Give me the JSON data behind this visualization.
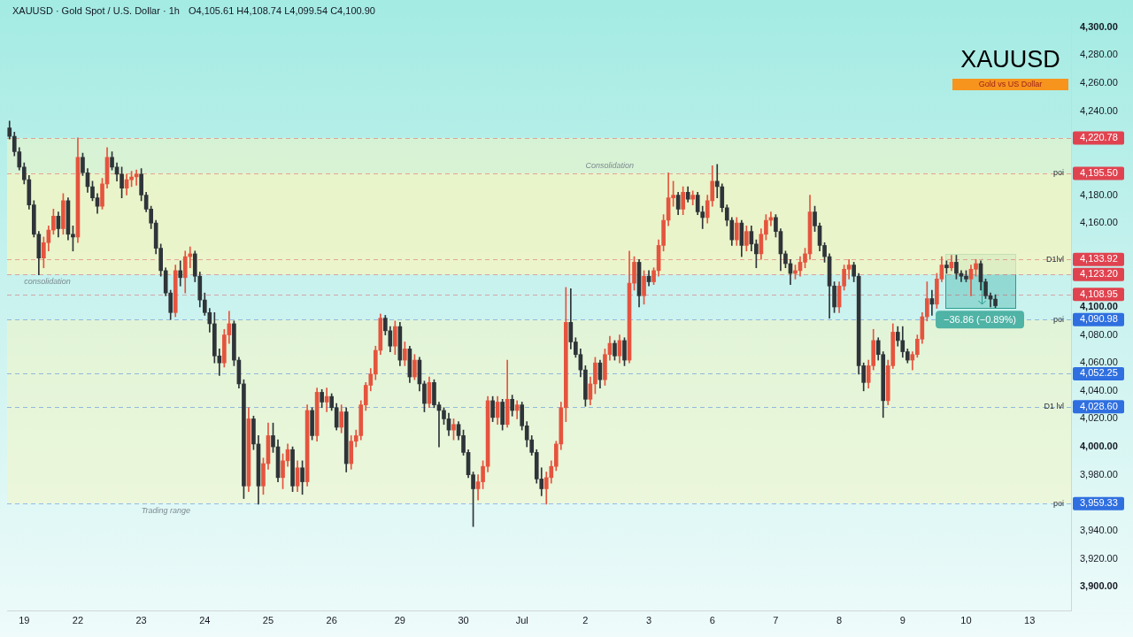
{
  "chart_data": {
    "type": "candlestick",
    "title": "XAUUSD · Gold Spot / U.S. Dollar · 1h",
    "subtitle": "O4,105.61 H4,108.74 L4,099.54 C4,100.90",
    "categories": [
      null,
      null,
      null,
      "19",
      null,
      null,
      null,
      null,
      null,
      null,
      null,
      null,
      null,
      null,
      "22",
      null,
      null,
      null,
      null,
      null,
      null,
      null,
      null,
      null,
      null,
      null,
      null,
      "23",
      null,
      null,
      null,
      null,
      null,
      null,
      null,
      null,
      null,
      null,
      null,
      null,
      "24",
      null,
      null,
      null,
      null,
      null,
      null,
      null,
      null,
      null,
      null,
      null,
      null,
      "25",
      null,
      null,
      null,
      null,
      null,
      null,
      null,
      null,
      null,
      null,
      null,
      null,
      "26",
      null,
      null,
      null,
      null,
      null,
      null,
      null,
      null,
      null,
      null,
      null,
      null,
      null,
      "29",
      null,
      null,
      null,
      null,
      null,
      null,
      null,
      null,
      null,
      null,
      null,
      null,
      "30",
      null,
      null,
      null,
      null,
      null,
      null,
      null,
      null,
      null,
      null,
      null,
      "Jul",
      null,
      null,
      null,
      null,
      null,
      null,
      null,
      null,
      null,
      null,
      null,
      null,
      "2",
      null,
      null,
      null,
      null,
      null,
      null,
      null,
      null,
      null,
      null,
      null,
      null,
      "3",
      null,
      null,
      null,
      null,
      null,
      null,
      null,
      null,
      null,
      null,
      null,
      null,
      "6",
      null,
      null,
      null,
      null,
      null,
      null,
      null,
      null,
      null,
      null,
      null,
      null,
      "7",
      null,
      null,
      null,
      null,
      null,
      null,
      null,
      null,
      null,
      null,
      null,
      null,
      "8",
      null,
      null,
      null,
      null,
      null,
      null,
      null,
      null,
      null,
      null,
      null,
      null,
      "9",
      null,
      null,
      null,
      null,
      null,
      null,
      null,
      null,
      null,
      null,
      null,
      null,
      "10",
      null,
      null,
      null,
      null,
      null,
      null,
      null,
      null,
      null,
      null,
      null,
      null,
      "13",
      null,
      null,
      null,
      null,
      null,
      null,
      null,
      null
    ],
    "ohlc": [
      [
        4228,
        4233,
        4220,
        4222
      ],
      [
        4222,
        4225,
        4208,
        4211
      ],
      [
        4211,
        4214,
        4198,
        4200
      ],
      [
        4200,
        4203,
        4188,
        4191
      ],
      [
        4191,
        4194,
        4170,
        4173
      ],
      [
        4173,
        4176,
        4150,
        4152
      ],
      [
        4152,
        4154,
        4123,
        4135
      ],
      [
        4135,
        4150,
        4128,
        4146
      ],
      [
        4146,
        4158,
        4140,
        4155
      ],
      [
        4155,
        4170,
        4152,
        4165
      ],
      [
        4165,
        4168,
        4150,
        4156
      ],
      [
        4156,
        4181,
        4152,
        4176
      ],
      [
        4176,
        4178,
        4148,
        4152
      ],
      [
        4152,
        4158,
        4140,
        4150
      ],
      [
        4150,
        4221,
        4146,
        4207
      ],
      [
        4207,
        4210,
        4194,
        4196
      ],
      [
        4196,
        4199,
        4182,
        4186
      ],
      [
        4186,
        4190,
        4176,
        4178
      ],
      [
        4178,
        4181,
        4167,
        4172
      ],
      [
        4172,
        4192,
        4170,
        4188
      ],
      [
        4188,
        4214,
        4185,
        4207
      ],
      [
        4207,
        4211,
        4198,
        4200
      ],
      [
        4200,
        4203,
        4190,
        4195
      ],
      [
        4195,
        4200,
        4178,
        4185
      ],
      [
        4185,
        4195,
        4180,
        4191
      ],
      [
        4191,
        4197,
        4186,
        4193
      ],
      [
        4193,
        4198,
        4187,
        4195
      ],
      [
        4195,
        4199,
        4176,
        4180
      ],
      [
        4180,
        4182,
        4168,
        4170
      ],
      [
        4170,
        4172,
        4156,
        4160
      ],
      [
        4160,
        4162,
        4138,
        4142
      ],
      [
        4142,
        4145,
        4122,
        4126
      ],
      [
        4126,
        4128,
        4108,
        4110
      ],
      [
        4110,
        4112,
        4091,
        4096
      ],
      [
        4096,
        4130,
        4093,
        4126
      ],
      [
        4126,
        4133,
        4115,
        4121
      ],
      [
        4121,
        4140,
        4110,
        4136
      ],
      [
        4136,
        4143,
        4128,
        4138
      ],
      [
        4138,
        4140,
        4118,
        4122
      ],
      [
        4122,
        4125,
        4100,
        4105
      ],
      [
        4105,
        4110,
        4094,
        4096
      ],
      [
        4096,
        4099,
        4082,
        4088
      ],
      [
        4088,
        4096,
        4060,
        4065
      ],
      [
        4065,
        4070,
        4051,
        4060
      ],
      [
        4060,
        4084,
        4057,
        4080
      ],
      [
        4080,
        4097,
        4074,
        4088
      ],
      [
        4088,
        4090,
        4058,
        4062
      ],
      [
        4062,
        4064,
        4042,
        4045
      ],
      [
        4045,
        4048,
        3963,
        3972
      ],
      [
        3972,
        4028,
        3968,
        4020
      ],
      [
        4020,
        4022,
        3998,
        4002
      ],
      [
        4002,
        4008,
        3959,
        3972
      ],
      [
        3972,
        3992,
        3966,
        3988
      ],
      [
        3988,
        4017,
        3984,
        4008
      ],
      [
        4008,
        4017,
        3996,
        4000
      ],
      [
        4000,
        4005,
        3975,
        3978
      ],
      [
        3978,
        3995,
        3970,
        3990
      ],
      [
        3990,
        4002,
        3986,
        3998
      ],
      [
        3998,
        4000,
        3968,
        3972
      ],
      [
        3972,
        3990,
        3968,
        3985
      ],
      [
        3985,
        3990,
        3966,
        3975
      ],
      [
        3975,
        4030,
        3972,
        4026
      ],
      [
        4026,
        4028,
        4005,
        4008
      ],
      [
        4008,
        4042,
        4004,
        4039
      ],
      [
        4039,
        4041,
        4028,
        4032
      ],
      [
        4032,
        4042,
        4025,
        4036
      ],
      [
        4036,
        4038,
        4026,
        4028
      ],
      [
        4028,
        4031,
        4012,
        4014
      ],
      [
        4014,
        4030,
        4010,
        4025
      ],
      [
        4025,
        4028,
        3982,
        3988
      ],
      [
        3988,
        4008,
        3984,
        4004
      ],
      [
        4004,
        4012,
        4000,
        4008
      ],
      [
        4008,
        4033,
        4005,
        4030
      ],
      [
        4030,
        4046,
        4026,
        4044
      ],
      [
        4044,
        4056,
        4040,
        4052
      ],
      [
        4052,
        4072,
        4048,
        4069
      ],
      [
        4069,
        4095,
        4066,
        4092
      ],
      [
        4092,
        4094,
        4080,
        4083
      ],
      [
        4083,
        4086,
        4068,
        4072
      ],
      [
        4072,
        4090,
        4066,
        4086
      ],
      [
        4086,
        4089,
        4058,
        4062
      ],
      [
        4062,
        4075,
        4058,
        4070
      ],
      [
        4070,
        4072,
        4046,
        4050
      ],
      [
        4050,
        4066,
        4048,
        4062
      ],
      [
        4062,
        4064,
        4040,
        4045
      ],
      [
        4045,
        4047,
        4025,
        4031
      ],
      [
        4031,
        4050,
        4028,
        4046
      ],
      [
        4046,
        4048,
        4028,
        4030
      ],
      [
        4030,
        4032,
        4000,
        4026
      ],
      [
        4026,
        4028,
        4016,
        4020
      ],
      [
        4020,
        4024,
        4008,
        4012
      ],
      [
        4012,
        4020,
        4005,
        4016
      ],
      [
        4016,
        4018,
        4005,
        4008
      ],
      [
        4008,
        4012,
        3994,
        3996
      ],
      [
        3996,
        3998,
        3978,
        3980
      ],
      [
        3980,
        3982,
        3943,
        3970
      ],
      [
        3970,
        3980,
        3962,
        3975
      ],
      [
        3975,
        3990,
        3970,
        3986
      ],
      [
        3986,
        4036,
        3982,
        4033
      ],
      [
        4033,
        4036,
        4018,
        4021
      ],
      [
        4021,
        4036,
        4016,
        4032
      ],
      [
        4032,
        4034,
        4012,
        4016
      ],
      [
        4016,
        4062,
        4014,
        4034
      ],
      [
        4034,
        4037,
        4022,
        4026
      ],
      [
        4026,
        4033,
        4020,
        4030
      ],
      [
        4030,
        4032,
        4012,
        4015
      ],
      [
        4015,
        4018,
        4000,
        4005
      ],
      [
        4005,
        4008,
        3994,
        3996
      ],
      [
        3996,
        3998,
        3974,
        3977
      ],
      [
        3977,
        3985,
        3965,
        3970
      ],
      [
        3970,
        3982,
        3959,
        3978
      ],
      [
        3978,
        3990,
        3974,
        3986
      ],
      [
        3986,
        4004,
        3983,
        4002
      ],
      [
        4002,
        4032,
        3998,
        4028
      ],
      [
        4028,
        4114,
        4018,
        4089
      ],
      [
        4089,
        4113,
        4070,
        4075
      ],
      [
        4075,
        4078,
        4064,
        4066
      ],
      [
        4066,
        4070,
        4050,
        4055
      ],
      [
        4055,
        4058,
        4029,
        4034
      ],
      [
        4034,
        4050,
        4030,
        4045
      ],
      [
        4045,
        4064,
        4038,
        4060
      ],
      [
        4060,
        4062,
        4042,
        4048
      ],
      [
        4048,
        4070,
        4044,
        4066
      ],
      [
        4066,
        4079,
        4062,
        4074
      ],
      [
        4074,
        4076,
        4062,
        4065
      ],
      [
        4065,
        4080,
        4060,
        4076
      ],
      [
        4076,
        4078,
        4058,
        4062
      ],
      [
        4062,
        4140,
        4060,
        4117
      ],
      [
        4117,
        4136,
        4112,
        4132
      ],
      [
        4132,
        4134,
        4100,
        4108
      ],
      [
        4108,
        4126,
        4102,
        4122
      ],
      [
        4122,
        4126,
        4115,
        4118
      ],
      [
        4118,
        4128,
        4116,
        4126
      ],
      [
        4126,
        4148,
        4122,
        4144
      ],
      [
        4144,
        4166,
        4140,
        4162
      ],
      [
        4162,
        4196,
        4158,
        4178
      ],
      [
        4178,
        4190,
        4172,
        4180
      ],
      [
        4180,
        4182,
        4166,
        4170
      ],
      [
        4170,
        4186,
        4166,
        4182
      ],
      [
        4182,
        4186,
        4175,
        4177
      ],
      [
        4177,
        4183,
        4173,
        4180
      ],
      [
        4180,
        4182,
        4166,
        4168
      ],
      [
        4168,
        4172,
        4156,
        4164
      ],
      [
        4164,
        4180,
        4160,
        4176
      ],
      [
        4176,
        4201,
        4172,
        4190
      ],
      [
        4190,
        4202,
        4178,
        4186
      ],
      [
        4186,
        4188,
        4168,
        4171
      ],
      [
        4171,
        4173,
        4158,
        4162
      ],
      [
        4162,
        4164,
        4144,
        4148
      ],
      [
        4148,
        4164,
        4144,
        4160
      ],
      [
        4160,
        4162,
        4136,
        4144
      ],
      [
        4144,
        4158,
        4140,
        4154
      ],
      [
        4154,
        4158,
        4140,
        4145
      ],
      [
        4145,
        4148,
        4128,
        4138
      ],
      [
        4138,
        4156,
        4134,
        4152
      ],
      [
        4152,
        4166,
        4148,
        4162
      ],
      [
        4162,
        4168,
        4158,
        4164
      ],
      [
        4164,
        4166,
        4150,
        4154
      ],
      [
        4154,
        4156,
        4126,
        4138
      ],
      [
        4138,
        4140,
        4128,
        4131
      ],
      [
        4131,
        4134,
        4116,
        4124
      ],
      [
        4124,
        4130,
        4120,
        4126
      ],
      [
        4126,
        4136,
        4122,
        4132
      ],
      [
        4132,
        4142,
        4128,
        4138
      ],
      [
        4138,
        4180,
        4134,
        4168
      ],
      [
        4168,
        4172,
        4154,
        4158
      ],
      [
        4158,
        4160,
        4140,
        4144
      ],
      [
        4144,
        4146,
        4132,
        4136
      ],
      [
        4136,
        4138,
        4092,
        4115
      ],
      [
        4115,
        4118,
        4096,
        4100
      ],
      [
        4100,
        4118,
        4096,
        4115
      ],
      [
        4115,
        4130,
        4112,
        4127
      ],
      [
        4127,
        4134,
        4120,
        4130
      ],
      [
        4130,
        4132,
        4118,
        4122
      ],
      [
        4122,
        4124,
        4052,
        4058
      ],
      [
        4058,
        4060,
        4040,
        4046
      ],
      [
        4046,
        4062,
        4042,
        4058
      ],
      [
        4058,
        4084,
        4055,
        4076
      ],
      [
        4076,
        4078,
        4062,
        4066
      ],
      [
        4066,
        4068,
        4021,
        4033
      ],
      [
        4033,
        4062,
        4030,
        4058
      ],
      [
        4058,
        4088,
        4056,
        4082
      ],
      [
        4082,
        4086,
        4072,
        4076
      ],
      [
        4076,
        4086,
        4064,
        4068
      ],
      [
        4068,
        4070,
        4060,
        4062
      ],
      [
        4062,
        4068,
        4055,
        4066
      ],
      [
        4066,
        4080,
        4064,
        4077
      ],
      [
        4077,
        4096,
        4074,
        4093
      ],
      [
        4093,
        4118,
        4090,
        4106
      ],
      [
        4106,
        4112,
        4094,
        4102
      ],
      [
        4102,
        4124,
        4099,
        4120
      ],
      [
        4120,
        4136,
        4118,
        4130
      ],
      [
        4130,
        4133,
        4124,
        4128
      ],
      [
        4128,
        4137,
        4126,
        4132
      ],
      [
        4132,
        4137,
        4120,
        4124
      ],
      [
        4124,
        4126,
        4118,
        4122
      ],
      [
        4122,
        4126,
        4118,
        4120
      ],
      [
        4120,
        4130,
        4108,
        4127
      ],
      [
        4127,
        4134,
        4122,
        4131
      ],
      [
        4131,
        4133,
        4112,
        4118
      ],
      [
        4118,
        4120,
        4106,
        4108
      ],
      [
        4108,
        4110,
        4100,
        4105.61
      ],
      [
        4105.61,
        4108.74,
        4099.54,
        4100.9
      ],
      null,
      null,
      null,
      null,
      null,
      null,
      null,
      null,
      null,
      null,
      null,
      null,
      null,
      null,
      null
    ],
    "colors": [
      "#2e3438",
      "#2e3438",
      "#2e3438",
      "#2e3438",
      "#2e3438",
      "#2e3438",
      "#2e3438",
      "#e5543e",
      "#e5543e",
      "#e5543e",
      "#2e3438",
      "#e5543e",
      "#2e3438",
      "#2e3438",
      "#e5543e",
      "#2e3438",
      "#2e3438",
      "#2e3438",
      "#2e3438",
      "#e5543e",
      "#e5543e",
      "#2e3438",
      "#2e3438",
      "#2e3438",
      "#e5543e",
      "#e5543e",
      "#e5543e",
      "#2e3438",
      "#2e3438",
      "#2e3438",
      "#2e3438",
      "#2e3438",
      "#2e3438",
      "#2e3438",
      "#e5543e",
      "#2e3438",
      "#e5543e",
      "#e5543e",
      "#2e3438",
      "#2e3438",
      "#2e3438",
      "#2e3438",
      "#2e3438",
      "#2e3438",
      "#e5543e",
      "#e5543e",
      "#2e3438",
      "#2e3438",
      "#2e3438",
      "#e5543e",
      "#2e3438",
      "#2e3438",
      "#e5543e",
      "#e5543e",
      "#2e3438",
      "#2e3438",
      "#e5543e",
      "#e5543e",
      "#2e3438",
      "#e5543e",
      "#2e3438",
      "#e5543e",
      "#2e3438",
      "#e5543e",
      "#2e3438",
      "#e5543e",
      "#2e3438",
      "#2e3438",
      "#e5543e",
      "#2e3438",
      "#e5543e",
      "#e5543e",
      "#e5543e",
      "#e5543e",
      "#e5543e",
      "#e5543e",
      "#e5543e",
      "#2e3438",
      "#2e3438",
      "#e5543e",
      "#2e3438",
      "#e5543e",
      "#2e3438",
      "#e5543e",
      "#2e3438",
      "#2e3438",
      "#e5543e",
      "#2e3438",
      "#2e3438",
      "#2e3438",
      "#2e3438",
      "#e5543e",
      "#2e3438",
      "#2e3438",
      "#2e3438",
      "#2e3438",
      "#e5543e",
      "#e5543e",
      "#e5543e",
      "#2e3438",
      "#e5543e",
      "#2e3438",
      "#e5543e",
      "#2e3438",
      "#e5543e",
      "#2e3438",
      "#2e3438",
      "#2e3438",
      "#2e3438",
      "#2e3438",
      "#e5543e",
      "#e5543e",
      "#e5543e",
      "#e5543e",
      "#e5543e",
      "#2e3438",
      "#2e3438",
      "#2e3438",
      "#2e3438",
      "#e5543e",
      "#e5543e",
      "#2e3438",
      "#e5543e",
      "#e5543e",
      "#2e3438",
      "#e5543e",
      "#2e3438",
      "#e5543e",
      "#e5543e",
      "#2e3438",
      "#e5543e",
      "#2e3438",
      "#e5543e",
      "#e5543e",
      "#e5543e",
      "#e5543e",
      "#e5543e",
      "#2e3438",
      "#e5543e",
      "#2e3438",
      "#e5543e",
      "#2e3438",
      "#2e3438",
      "#e5543e",
      "#e5543e",
      "#2e3438",
      "#2e3438",
      "#2e3438",
      "#2e3438",
      "#e5543e",
      "#2e3438",
      "#e5543e",
      "#2e3438",
      "#2e3438",
      "#e5543e",
      "#e5543e",
      "#e5543e",
      "#2e3438",
      "#2e3438",
      "#2e3438",
      "#2e3438",
      "#e5543e",
      "#e5543e",
      "#e5543e",
      "#e5543e",
      "#2e3438",
      "#2e3438",
      "#2e3438",
      "#2e3438",
      "#2e3438",
      "#e5543e",
      "#e5543e",
      "#e5543e",
      "#2e3438",
      "#2e3438",
      "#2e3438",
      "#e5543e",
      "#e5543e",
      "#2e3438",
      "#2e3438",
      "#e5543e",
      "#e5543e",
      "#2e3438",
      "#2e3438",
      "#2e3438",
      "#e5543e",
      "#e5543e",
      "#e5543e",
      "#e5543e",
      "#2e3438",
      "#e5543e",
      "#e5543e",
      "#2e3438",
      "#e5543e",
      "#2e3438",
      "#2e3438",
      "#2e3438",
      "#e5543e",
      "#e5543e",
      "#2e3438",
      "#2e3438",
      "#2e3438",
      "#2e3438",
      null,
      null,
      null,
      null,
      null,
      null,
      null,
      null,
      null,
      null,
      null,
      null,
      null,
      null,
      null
    ],
    "ylim": [
      3883,
      4309
    ],
    "yticks": [
      {
        "value": 3900,
        "label": "3,900.00"
      },
      {
        "value": 3920,
        "label": "3,920.00"
      },
      {
        "value": 3940,
        "label": "3,940.00"
      },
      {
        "value": 3959.33,
        "label": "3,959.33"
      },
      {
        "value": 3980,
        "label": "3,980.00"
      },
      {
        "value": 4000,
        "label": "4,000.00"
      },
      {
        "value": 4020,
        "label": "4,020.00"
      },
      {
        "value": 4028.6,
        "label": "4,028.60"
      },
      {
        "value": 4040,
        "label": "4,040.00"
      },
      {
        "value": 4052.25,
        "label": "4,052.25"
      },
      {
        "value": 4060,
        "label": "4,060.00"
      },
      {
        "value": 4080,
        "label": "4,080.00"
      },
      {
        "value": 4090.98,
        "label": "4,090.98"
      },
      {
        "value": 4100,
        "label": "4,100.00"
      },
      {
        "value": 4108.95,
        "label": "4,108.95"
      },
      {
        "value": 4123.2,
        "label": "4,123.20"
      },
      {
        "value": 4133.92,
        "label": "4,133.92"
      },
      {
        "value": 4160,
        "label": "4,160.00"
      },
      {
        "value": 4180,
        "label": "4,180.00"
      },
      {
        "value": 4195.5,
        "label": "4,195.50"
      },
      {
        "value": 4220.78,
        "label": "4,220.78"
      },
      {
        "value": 4240,
        "label": "4,240.00"
      },
      {
        "value": 4260,
        "label": "4,260.00"
      },
      {
        "value": 4280,
        "label": "4,280.00"
      },
      {
        "value": 4300,
        "label": "4,300.00"
      }
    ],
    "ref_lines": [
      {
        "axis": "y",
        "value": 4220.78,
        "color": "#e0434f",
        "line_style": "dashed"
      },
      {
        "axis": "y",
        "value": 4195.5,
        "label": "poi",
        "color": "#e0434f",
        "line_style": "dashed"
      },
      {
        "axis": "y",
        "value": 4133.92,
        "label": "D1lvl",
        "color": "#e0434f",
        "line_style": "dashed"
      },
      {
        "axis": "y",
        "value": 4123.2,
        "color": "#e0434f",
        "line_style": "dashed"
      },
      {
        "axis": "y",
        "value": 4108.95,
        "color": "#e0434f",
        "line_style": "dashed"
      },
      {
        "axis": "y",
        "value": 4090.98,
        "label": "poi",
        "color": "#2f6fe0",
        "line_style": "dashed"
      },
      {
        "axis": "y",
        "value": 4052.25,
        "color": "#2f6fe0",
        "line_style": "dashed"
      },
      {
        "axis": "y",
        "value": 4028.6,
        "label": "D1 lvl",
        "color": "#2f6fe0",
        "line_style": "dashed"
      },
      {
        "axis": "y",
        "value": 3959.33,
        "label": "poi",
        "color": "#2f6fe0",
        "line_style": "dashed"
      }
    ],
    "bands": [
      {
        "axis": "y",
        "from": 4123.2,
        "to": 4220.78,
        "color": "#f7f6c0"
      },
      {
        "axis": "y",
        "from": 4123.2,
        "to": 4195.5,
        "color": "#f7f6c0"
      },
      {
        "axis": "y",
        "from": 3959.33,
        "to": 4090.98,
        "color": "#f7f6c0"
      }
    ],
    "annotations": [
      "XAUUSD",
      "Gold vs US Dollar",
      {
        "text": "consolidation",
        "x": "19",
        "y": 4123.2
      },
      {
        "text": "Trading range",
        "x": "23",
        "y": 3959.33
      },
      {
        "text": "Consolidation",
        "x": "2",
        "y": 4195.5
      },
      {
        "text": "−36.86 (−0.89%)",
        "y": 4090.98
      }
    ]
  }
}
